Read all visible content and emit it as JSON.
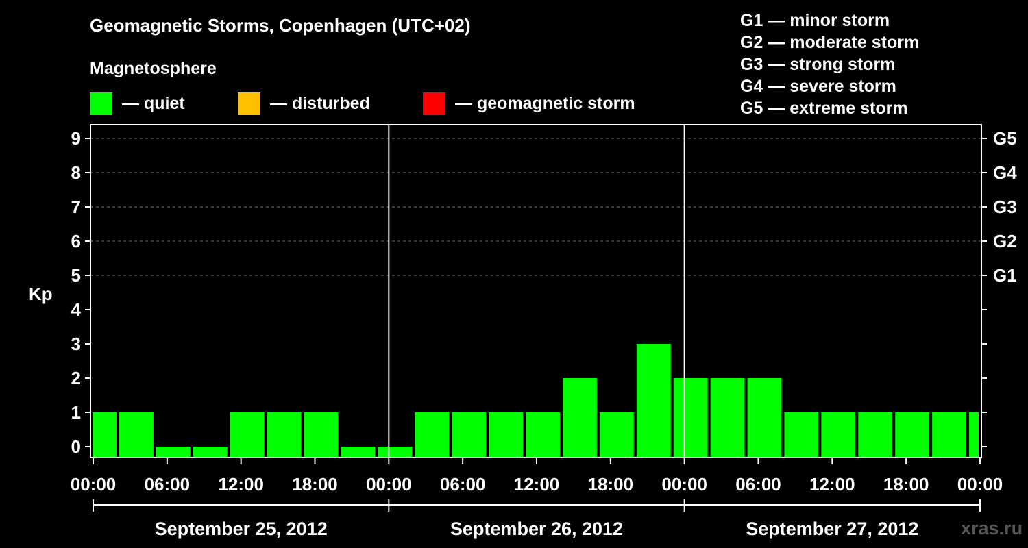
{
  "title": "Geomagnetic Storms, Copenhagen (UTC+02)",
  "magnetosphere_label": "Magnetosphere",
  "legend": [
    {
      "label": "— quiet",
      "color": "#00ff00"
    },
    {
      "label": "— disturbed",
      "color": "#ffc000"
    },
    {
      "label": "— geomagnetic storm",
      "color": "#ff0000"
    }
  ],
  "storm_scale": [
    "G1 — minor storm",
    "G2 — moderate storm",
    "G3 — strong storm",
    "G4 — severe storm",
    "G5 — extreme storm"
  ],
  "watermark": "xras.ru",
  "chart_data": {
    "type": "bar",
    "ylabel": "Kp",
    "ylim": [
      0,
      9
    ],
    "y_ticks": [
      "0",
      "1",
      "2",
      "3",
      "4",
      "5",
      "6",
      "7",
      "8",
      "9"
    ],
    "right_axis": [
      {
        "kp": 5,
        "label": "G1"
      },
      {
        "kp": 6,
        "label": "G2"
      },
      {
        "kp": 7,
        "label": "G3"
      },
      {
        "kp": 8,
        "label": "G4"
      },
      {
        "kp": 9,
        "label": "G5"
      }
    ],
    "x_tick_labels": [
      "00:00",
      "06:00",
      "12:00",
      "18:00",
      "00:00",
      "06:00",
      "12:00",
      "18:00",
      "00:00",
      "06:00",
      "12:00",
      "18:00",
      "00:00"
    ],
    "days": [
      "September 25, 2012",
      "September 26, 2012",
      "September 27, 2012"
    ],
    "grid": "dashed horizontal at Kp 5–9",
    "bar_color": "#00ff00",
    "bars": [
      {
        "start": 0,
        "end": 2,
        "kp": 1
      },
      {
        "start": 2,
        "end": 5,
        "kp": 1
      },
      {
        "start": 5,
        "end": 8,
        "kp": 0
      },
      {
        "start": 8,
        "end": 11,
        "kp": 0
      },
      {
        "start": 11,
        "end": 14,
        "kp": 1
      },
      {
        "start": 14,
        "end": 17,
        "kp": 1
      },
      {
        "start": 17,
        "end": 20,
        "kp": 1
      },
      {
        "start": 20,
        "end": 23,
        "kp": 0
      },
      {
        "start": 23,
        "end": 26,
        "kp": 0
      },
      {
        "start": 26,
        "end": 29,
        "kp": 1
      },
      {
        "start": 29,
        "end": 32,
        "kp": 1
      },
      {
        "start": 32,
        "end": 35,
        "kp": 1
      },
      {
        "start": 35,
        "end": 38,
        "kp": 1
      },
      {
        "start": 38,
        "end": 41,
        "kp": 2
      },
      {
        "start": 41,
        "end": 44,
        "kp": 1
      },
      {
        "start": 44,
        "end": 47,
        "kp": 3
      },
      {
        "start": 47,
        "end": 50,
        "kp": 2
      },
      {
        "start": 50,
        "end": 53,
        "kp": 2
      },
      {
        "start": 53,
        "end": 56,
        "kp": 2
      },
      {
        "start": 56,
        "end": 59,
        "kp": 1
      },
      {
        "start": 59,
        "end": 62,
        "kp": 1
      },
      {
        "start": 62,
        "end": 65,
        "kp": 1
      },
      {
        "start": 65,
        "end": 68,
        "kp": 1
      },
      {
        "start": 68,
        "end": 71,
        "kp": 1
      },
      {
        "start": 71,
        "end": 72,
        "kp": 1
      }
    ]
  }
}
